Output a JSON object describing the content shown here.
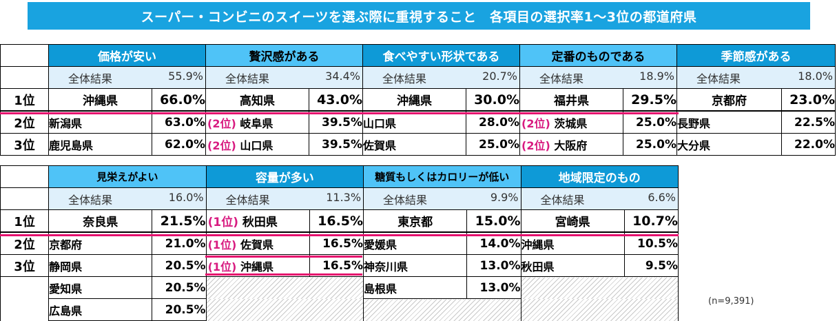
{
  "title": "スーパー・コンビニのスイーツを選ぶ際に重視すること　各項目の選択率1～3位の都道府県",
  "ranks": [
    "1位",
    "2位",
    "3位"
  ],
  "overall_label": "全体結果",
  "note": "(n=9,391)",
  "colors": {
    "title_bg": "#19a3e0",
    "header_light": "#4fc3f7",
    "header_dark": "#0e9ad7",
    "overall_bg": "#dff0fb",
    "tie": "#d81b80",
    "underline": "#e6106e"
  },
  "chart_data": {
    "type": "table",
    "title": "スーパー・コンビニのスイーツを選ぶ際に重視すること　各項目の選択率1～3位の都道府県",
    "groups": [
      {
        "items": [
          {
            "name": "価格が安い",
            "overall": "55.9%",
            "rows": [
              {
                "tie": "",
                "pref": "沖縄県",
                "value": "66.0%"
              },
              {
                "tie": "",
                "pref": "新潟県",
                "value": "63.0%"
              },
              {
                "tie": "",
                "pref": "鹿児島県",
                "value": "62.0%"
              }
            ]
          },
          {
            "name": "贅沢感がある",
            "overall": "34.4%",
            "rows": [
              {
                "tie": "",
                "pref": "高知県",
                "value": "43.0%"
              },
              {
                "tie": "(2位)",
                "pref": "岐阜県",
                "value": "39.5%"
              },
              {
                "tie": "(2位)",
                "pref": "山口県",
                "value": "39.5%"
              }
            ]
          },
          {
            "name": "食べやすい形状である",
            "overall": "20.7%",
            "rows": [
              {
                "tie": "",
                "pref": "沖縄県",
                "value": "30.0%"
              },
              {
                "tie": "",
                "pref": "山口県",
                "value": "28.0%"
              },
              {
                "tie": "",
                "pref": "佐賀県",
                "value": "25.0%"
              }
            ]
          },
          {
            "name": "定番のものである",
            "overall": "18.9%",
            "rows": [
              {
                "tie": "",
                "pref": "福井県",
                "value": "29.5%"
              },
              {
                "tie": "(2位)",
                "pref": "茨城県",
                "value": "25.0%"
              },
              {
                "tie": "(2位)",
                "pref": "大阪府",
                "value": "25.0%"
              }
            ]
          },
          {
            "name": "季節感がある",
            "overall": "18.0%",
            "rows": [
              {
                "tie": "",
                "pref": "京都府",
                "value": "23.0%"
              },
              {
                "tie": "",
                "pref": "長野県",
                "value": "22.5%"
              },
              {
                "tie": "",
                "pref": "大分県",
                "value": "22.0%"
              }
            ]
          }
        ]
      },
      {
        "items": [
          {
            "name": "見栄えがよい",
            "overall": "16.0%",
            "rows": [
              {
                "tie": "",
                "pref": "奈良県",
                "value": "21.5%"
              },
              {
                "tie": "",
                "pref": "京都府",
                "value": "21.0%"
              },
              {
                "tie": "",
                "pref": "静岡県",
                "value": "20.5%"
              },
              {
                "tie": "",
                "pref": "愛知県",
                "value": "20.5%"
              },
              {
                "tie": "",
                "pref": "広島県",
                "value": "20.5%"
              }
            ]
          },
          {
            "name": "容量が多い",
            "overall": "11.3%",
            "rows": [
              {
                "tie": "(1位)",
                "pref": "秋田県",
                "value": "16.5%"
              },
              {
                "tie": "(1位)",
                "pref": "佐賀県",
                "value": "16.5%"
              },
              {
                "tie": "(1位)",
                "pref": "沖縄県",
                "value": "16.5%"
              }
            ]
          },
          {
            "name": "糖質もしくはカロリーが低い",
            "overall": "9.9%",
            "rows": [
              {
                "tie": "",
                "pref": "東京都",
                "value": "15.0%"
              },
              {
                "tie": "",
                "pref": "愛媛県",
                "value": "14.0%"
              },
              {
                "tie": "",
                "pref": "神奈川県",
                "value": "13.0%"
              },
              {
                "tie": "",
                "pref": "島根県",
                "value": "13.0%"
              }
            ]
          },
          {
            "name": "地域限定のもの",
            "overall": "6.6%",
            "rows": [
              {
                "tie": "",
                "pref": "宮崎県",
                "value": "10.7%"
              },
              {
                "tie": "",
                "pref": "沖縄県",
                "value": "10.5%"
              },
              {
                "tie": "",
                "pref": "秋田県",
                "value": "9.5%"
              }
            ]
          }
        ]
      }
    ]
  }
}
